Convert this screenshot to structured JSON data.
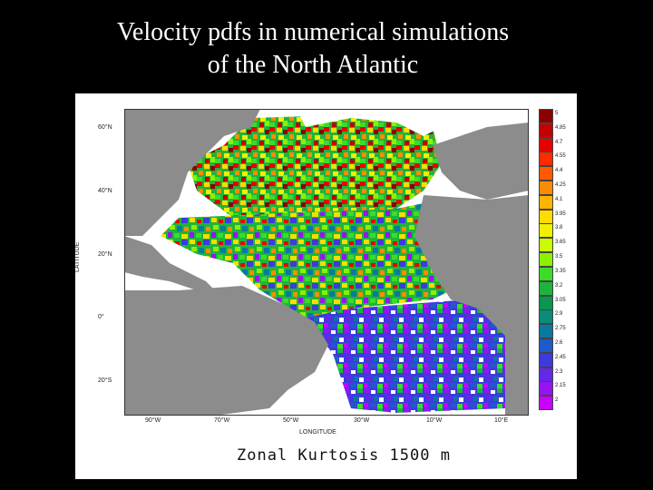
{
  "title": {
    "line1": "Velocity pdfs in numerical simulations",
    "line2": "of the North Atlantic"
  },
  "map": {
    "caption": "Zonal Kurtosis 1500 m",
    "ylabel": "LATITUDE",
    "xlabel": "LONGITUDE",
    "lat_ticks": [
      "60°N",
      "40°N",
      "20°N",
      "0°",
      "20°S"
    ],
    "lon_ticks": [
      "90°W",
      "70°W",
      "50°W",
      "30°W",
      "10°W",
      "10°E"
    ],
    "land_color": "#8c8c8c",
    "ice_color": "#ffffff"
  },
  "colorbar": {
    "labels": [
      "5",
      "4.85",
      "4.7",
      "4.55",
      "4.4",
      "4.25",
      "4.1",
      "3.95",
      "3.8",
      "3.65",
      "3.5",
      "3.35",
      "3.2",
      "3.05",
      "2.9",
      "2.75",
      "2.6",
      "2.45",
      "2.3",
      "2.15",
      "2"
    ],
    "colors": [
      "#8b0000",
      "#c40000",
      "#e80000",
      "#ff2a00",
      "#ff5a00",
      "#ff8c00",
      "#ffb400",
      "#ffdc00",
      "#f0f000",
      "#c8ff00",
      "#8cf000",
      "#3cdc28",
      "#1eb43c",
      "#0a9650",
      "#0a8c78",
      "#0a78a0",
      "#1e5ac8",
      "#3c3cdc",
      "#6428e6",
      "#9614f0",
      "#c800ff"
    ]
  }
}
